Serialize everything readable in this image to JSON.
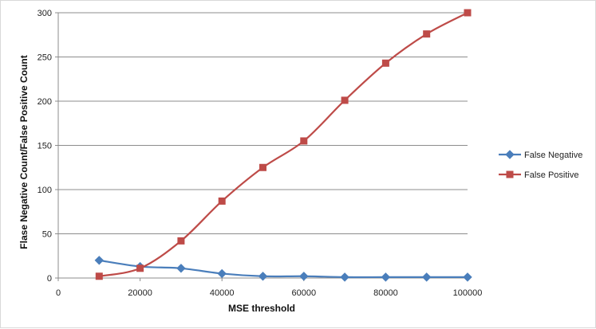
{
  "chart_data": {
    "type": "line",
    "title": "",
    "xlabel": "MSE threshold",
    "ylabel": "Flase Negative Count/False Positive Count",
    "xlim": [
      0,
      100000
    ],
    "ylim": [
      0,
      300
    ],
    "xticks": [
      0,
      20000,
      40000,
      60000,
      80000,
      100000
    ],
    "yticks": [
      0,
      50,
      100,
      150,
      200,
      250,
      300
    ],
    "grid": "horizontal",
    "legend_position": "right",
    "x": [
      10000,
      20000,
      30000,
      40000,
      50000,
      60000,
      70000,
      80000,
      90000,
      100000
    ],
    "series": [
      {
        "name": "False Negative",
        "color": "#4a7ebb",
        "marker": "diamond",
        "values": [
          20,
          13,
          11,
          5,
          2,
          2,
          1,
          1,
          1,
          1
        ]
      },
      {
        "name": "False Positive",
        "color": "#be4b48",
        "marker": "square",
        "values": [
          2,
          11,
          42,
          87,
          125,
          155,
          201,
          243,
          276,
          300
        ]
      }
    ]
  }
}
